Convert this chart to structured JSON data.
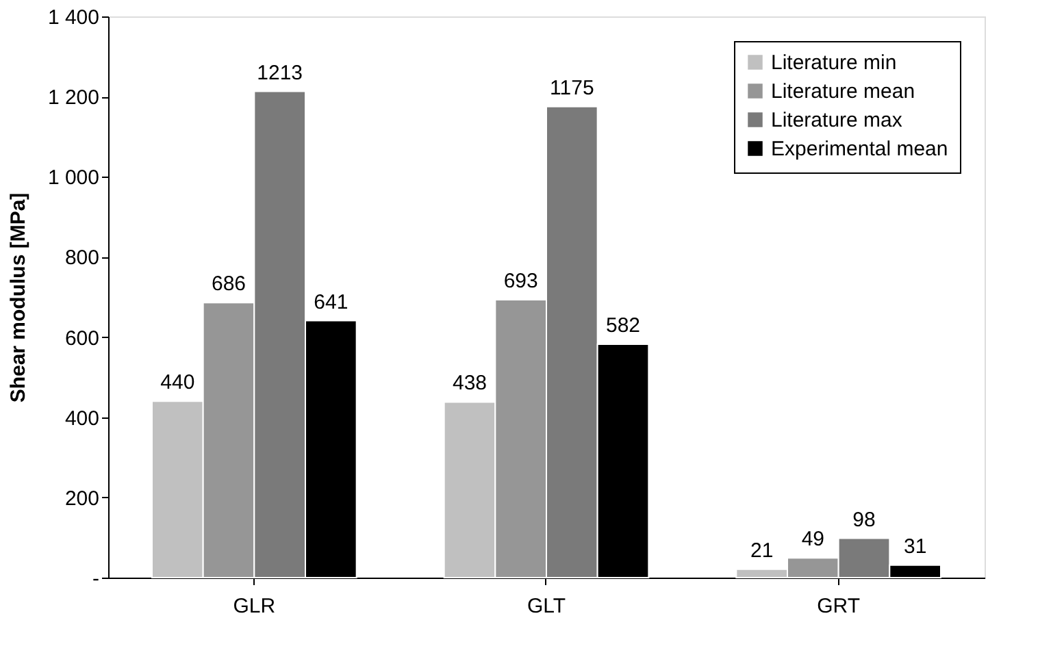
{
  "chart_data": {
    "type": "bar",
    "ylabel": "Shear modulus [MPa]",
    "categories": [
      "GLR",
      "GLT",
      "GRT"
    ],
    "series": [
      {
        "name": "Literature min",
        "color": "#c0c0c0",
        "values": [
          440,
          438,
          21
        ]
      },
      {
        "name": "Literature mean",
        "color": "#969696",
        "values": [
          686,
          693,
          49
        ]
      },
      {
        "name": "Literature max",
        "color": "#7a7a7a",
        "values": [
          1213,
          1175,
          98
        ]
      },
      {
        "name": "Experimental mean",
        "color": "#000000",
        "values": [
          641,
          582,
          31
        ]
      }
    ],
    "ylim": [
      0,
      1400
    ],
    "yticks": [
      {
        "value": 0,
        "label": "-"
      },
      200,
      400,
      600,
      800,
      {
        "value": 1000,
        "label": "1 000"
      },
      {
        "value": 1200,
        "label": "1 200"
      },
      {
        "value": 1400,
        "label": "1 400"
      }
    ],
    "data_labels": true,
    "legend": "top right",
    "grid": false
  }
}
